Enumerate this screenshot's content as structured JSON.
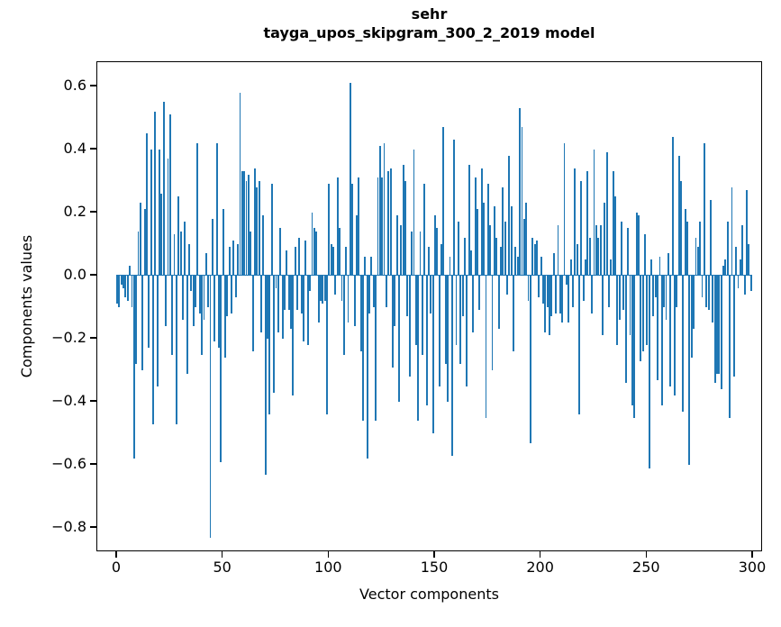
{
  "title": {
    "line1": "sehr",
    "line2": "tayga_upos_skipgram_300_2_2019 model"
  },
  "chart_data": {
    "type": "bar",
    "title": "sehr\ntayga_upos_skipgram_300_2_2019 model",
    "xlabel": "Vector components",
    "ylabel": "Components values",
    "bar_color": "#1f77b4",
    "grid": false,
    "legend": null,
    "x_ticks": [
      0,
      50,
      100,
      150,
      200,
      250,
      300
    ],
    "y_ticks": [
      0.6,
      0.4,
      0.2,
      0.0,
      -0.2,
      -0.4,
      -0.6,
      -0.8
    ],
    "xlim": [
      -9.35,
      304.67
    ],
    "ylim": [
      -0.877,
      0.677
    ],
    "x_start": 0,
    "values": [
      -0.09,
      -0.1,
      -0.03,
      -0.04,
      -0.07,
      -0.08,
      0.03,
      -0.1,
      -0.58,
      -0.28,
      0.14,
      0.23,
      -0.3,
      0.21,
      0.45,
      -0.23,
      0.4,
      -0.47,
      0.52,
      -0.35,
      0.4,
      0.26,
      0.55,
      -0.16,
      0.37,
      0.51,
      -0.25,
      0.13,
      -0.47,
      0.25,
      0.14,
      -0.14,
      0.17,
      -0.31,
      0.1,
      -0.05,
      -0.16,
      -0.1,
      0.42,
      -0.12,
      -0.25,
      -0.14,
      0.07,
      -0.1,
      -0.83,
      0.18,
      -0.21,
      0.42,
      -0.23,
      -0.59,
      0.21,
      -0.26,
      -0.13,
      0.09,
      -0.12,
      0.11,
      -0.07,
      0.1,
      0.58,
      0.33,
      0.33,
      0.3,
      0.32,
      0.14,
      -0.24,
      0.34,
      0.28,
      0.3,
      -0.18,
      0.19,
      -0.63,
      -0.2,
      -0.44,
      0.29,
      -0.37,
      -0.04,
      -0.18,
      0.15,
      -0.2,
      -0.11,
      0.08,
      -0.11,
      -0.17,
      -0.38,
      0.09,
      -0.11,
      0.12,
      -0.12,
      -0.21,
      0.11,
      -0.22,
      -0.05,
      0.2,
      0.15,
      0.14,
      -0.15,
      -0.08,
      -0.09,
      -0.08,
      -0.44,
      0.29,
      0.1,
      0.09,
      -0.06,
      0.31,
      0.15,
      -0.08,
      -0.25,
      0.09,
      -0.15,
      0.61,
      0.29,
      -0.16,
      0.19,
      0.31,
      -0.24,
      -0.46,
      0.06,
      -0.58,
      -0.12,
      0.06,
      -0.1,
      -0.46,
      0.31,
      0.41,
      0.31,
      0.42,
      -0.1,
      0.33,
      0.34,
      -0.29,
      -0.16,
      0.19,
      -0.4,
      0.16,
      0.35,
      0.3,
      -0.13,
      -0.32,
      0.14,
      0.4,
      -0.22,
      -0.46,
      0.14,
      -0.25,
      0.29,
      -0.41,
      0.09,
      -0.12,
      -0.5,
      0.19,
      0.15,
      -0.35,
      0.1,
      0.47,
      -0.28,
      -0.4,
      0.06,
      -0.57,
      0.43,
      -0.22,
      0.17,
      -0.28,
      -0.13,
      0.12,
      -0.35,
      0.35,
      0.08,
      -0.18,
      0.31,
      0.21,
      -0.11,
      0.34,
      0.23,
      -0.45,
      0.29,
      0.16,
      -0.3,
      0.22,
      0.12,
      -0.17,
      0.09,
      0.28,
      0.17,
      -0.06,
      0.38,
      0.22,
      -0.24,
      0.09,
      0.06,
      0.53,
      0.47,
      0.18,
      0.23,
      -0.08,
      -0.53,
      0.12,
      0.1,
      0.11,
      -0.07,
      0.06,
      -0.09,
      -0.18,
      -0.1,
      -0.19,
      -0.13,
      0.07,
      -0.12,
      0.16,
      -0.12,
      -0.15,
      0.42,
      -0.03,
      -0.15,
      0.05,
      -0.1,
      0.34,
      0.1,
      -0.44,
      0.3,
      -0.08,
      0.05,
      0.33,
      0.12,
      -0.12,
      0.4,
      0.16,
      0.12,
      0.16,
      -0.19,
      0.23,
      0.39,
      -0.1,
      0.05,
      0.33,
      0.25,
      -0.22,
      -0.14,
      0.17,
      -0.11,
      -0.34,
      0.15,
      -0.19,
      -0.41,
      -0.45,
      0.2,
      0.19,
      -0.27,
      -0.24,
      0.13,
      -0.22,
      -0.61,
      0.05,
      -0.13,
      -0.07,
      -0.33,
      0.06,
      -0.41,
      -0.1,
      -0.14,
      0.07,
      -0.35,
      0.44,
      -0.38,
      -0.1,
      0.38,
      0.3,
      -0.43,
      0.21,
      0.17,
      -0.6,
      -0.26,
      -0.17,
      0.12,
      0.09,
      0.17,
      -0.07,
      0.42,
      -0.1,
      -0.11,
      0.24,
      -0.15,
      -0.34,
      -0.31,
      -0.31,
      -0.36,
      0.03,
      0.05,
      0.17,
      -0.45,
      0.28,
      -0.32,
      0.09,
      -0.04,
      0.05,
      0.16,
      -0.06,
      0.27,
      0.1,
      -0.05
    ]
  }
}
